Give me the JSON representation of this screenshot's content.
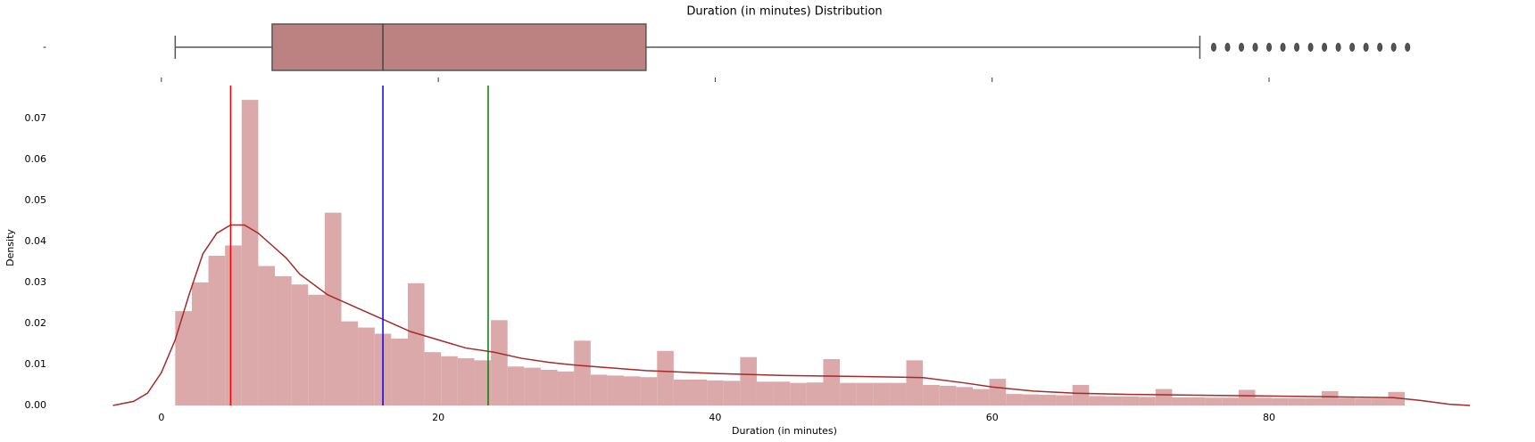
{
  "chart_data": [
    {
      "type": "box",
      "title": "Duration (in minutes) Distribution",
      "category": "-",
      "color": "#bc8282",
      "whisker_low": 1,
      "q1": 8,
      "median": 16,
      "q3": 35,
      "whisker_high": 75,
      "outliers": [
        76,
        77,
        78,
        79,
        80,
        81,
        82,
        83,
        84,
        85,
        86,
        87,
        88,
        89,
        90
      ],
      "xlim": [
        -4.5,
        94.5
      ],
      "xticks": [
        0,
        20,
        40,
        60,
        80
      ]
    },
    {
      "type": "histogram",
      "xlabel": "Duration (in minutes)",
      "ylabel": "Density",
      "color": "#dba9a9",
      "bins": [
        1,
        2.2,
        3.4,
        4.6,
        5.8,
        7,
        8.2,
        9.4,
        10.6,
        11.8,
        13,
        14.2,
        15.4,
        16.6,
        17.8,
        19,
        20.2,
        21.4,
        22.6,
        23.8,
        25,
        26.2,
        27.4,
        28.6,
        29.8,
        31,
        32.2,
        33.4,
        34.6,
        35.8,
        37,
        38.2,
        39.4,
        40.6,
        41.8,
        43,
        44.2,
        45.4,
        46.6,
        47.8,
        49,
        50.2,
        51.4,
        52.6,
        53.8,
        55,
        56.2,
        57.4,
        58.6,
        59.8,
        61,
        62.2,
        63.4,
        64.6,
        65.8,
        67,
        68.2,
        69.4,
        70.6,
        71.8,
        73,
        74.2,
        75.4,
        76.6,
        77.8,
        79,
        80.2,
        81.4,
        82.6,
        83.8,
        85,
        86.2,
        87.4,
        88.6,
        89.8
      ],
      "values": [
        0.023,
        0.03,
        0.0365,
        0.039,
        0.0745,
        0.034,
        0.0315,
        0.0295,
        0.027,
        0.047,
        0.0205,
        0.019,
        0.0175,
        0.0163,
        0.0298,
        0.013,
        0.012,
        0.0115,
        0.011,
        0.0208,
        0.0095,
        0.0092,
        0.0087,
        0.0083,
        0.0158,
        0.0075,
        0.0073,
        0.0071,
        0.0069,
        0.0133,
        0.0063,
        0.0063,
        0.0061,
        0.006,
        0.0118,
        0.0058,
        0.0058,
        0.0055,
        0.0056,
        0.0113,
        0.0055,
        0.0055,
        0.0055,
        0.0055,
        0.011,
        0.005,
        0.0048,
        0.0045,
        0.004,
        0.0065,
        0.0028,
        0.0027,
        0.0026,
        0.0025,
        0.005,
        0.0023,
        0.0022,
        0.0022,
        0.0021,
        0.004,
        0.002,
        0.002,
        0.0019,
        0.0019,
        0.0038,
        0.0019,
        0.0018,
        0.0018,
        0.0018,
        0.0035,
        0.0018,
        0.0017,
        0.0017,
        0.0033
      ],
      "kde": {
        "color": "#a52a2a",
        "x": [
          -3.5,
          -2,
          -1,
          0,
          1,
          2,
          3,
          4,
          5,
          6,
          7,
          8,
          9,
          10,
          12,
          14,
          16,
          18,
          20,
          22,
          24,
          26,
          28,
          30,
          35,
          40,
          45,
          50,
          55,
          58,
          60,
          63,
          66,
          70,
          75,
          80,
          85,
          89,
          91,
          93,
          94.5
        ],
        "values": [
          0,
          0.001,
          0.003,
          0.008,
          0.016,
          0.027,
          0.037,
          0.042,
          0.044,
          0.044,
          0.042,
          0.039,
          0.036,
          0.032,
          0.027,
          0.024,
          0.021,
          0.018,
          0.016,
          0.014,
          0.013,
          0.0115,
          0.0105,
          0.0098,
          0.0085,
          0.0078,
          0.0073,
          0.0071,
          0.0068,
          0.0055,
          0.0045,
          0.0035,
          0.003,
          0.0027,
          0.0025,
          0.0023,
          0.0021,
          0.0019,
          0.0012,
          0.0003,
          0
        ]
      },
      "vlines": [
        {
          "value": 5,
          "color": "#ff0000"
        },
        {
          "value": 16,
          "color": "#0000ff"
        },
        {
          "value": 23.6,
          "color": "#008000"
        }
      ],
      "xlim": [
        -4.5,
        94.5
      ],
      "ylim": [
        0,
        0.078
      ],
      "xticks": [
        0,
        20,
        40,
        60,
        80
      ],
      "yticks": [
        {
          "value": 0,
          "label": "0.00"
        },
        {
          "value": 0.01,
          "label": "0.01"
        },
        {
          "value": 0.02,
          "label": "0.02"
        },
        {
          "value": 0.03,
          "label": "0.03"
        },
        {
          "value": 0.04,
          "label": "0.04"
        },
        {
          "value": 0.05,
          "label": "0.05"
        },
        {
          "value": 0.06,
          "label": "0.06"
        },
        {
          "value": 0.07,
          "label": "0.07"
        }
      ]
    }
  ]
}
